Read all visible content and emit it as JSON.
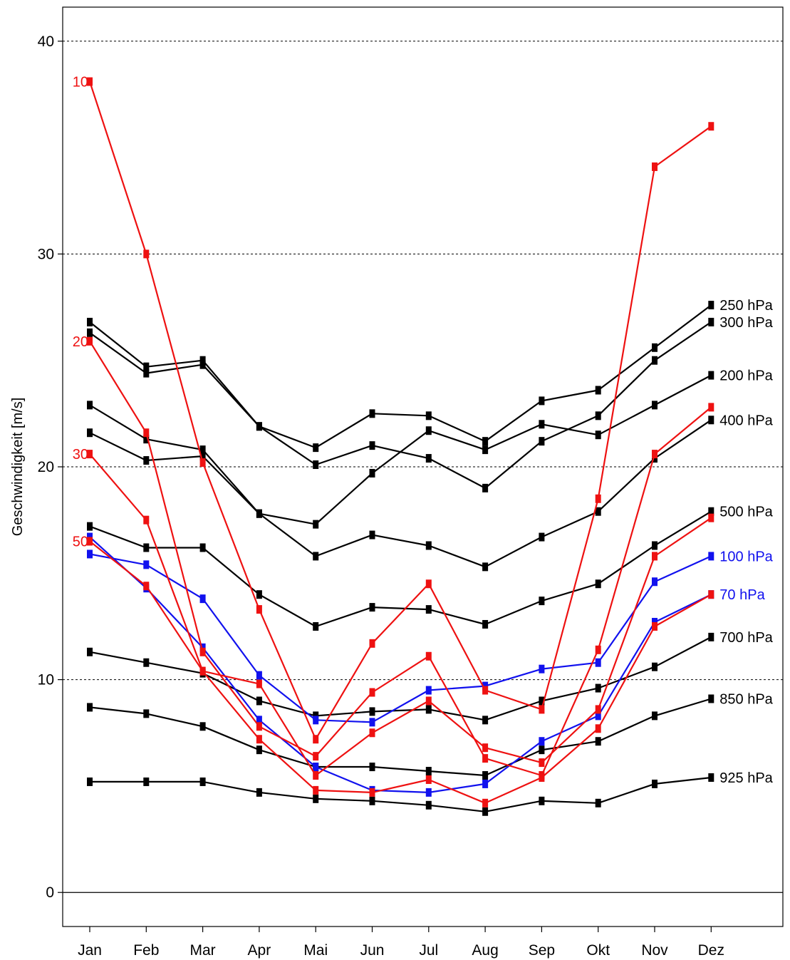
{
  "chart_data": {
    "type": "line",
    "title": "",
    "xlabel": "",
    "ylabel": "Geschwindigkeit [m/s]",
    "ylim": [
      -1.6,
      41.6
    ],
    "yticks": [
      0,
      10,
      20,
      30,
      40
    ],
    "grid": "horizontal-dotted",
    "categories": [
      "Jan",
      "Feb",
      "Mar",
      "Apr",
      "Mai",
      "Jun",
      "Jul",
      "Aug",
      "Sep",
      "Okt",
      "Nov",
      "Dez"
    ],
    "colors": {
      "black": "#000000",
      "red": "#ee1111",
      "blue": "#1111ee"
    },
    "series": [
      {
        "name": "250 hPa",
        "label_side": "right",
        "color": "red_no",
        "values": [
          26.8,
          24.7,
          25.0,
          21.9,
          20.9,
          22.5,
          22.4,
          21.2,
          23.1,
          23.6,
          25.6,
          27.6
        ]
      },
      {
        "name": "300 hPa",
        "label_side": "right",
        "color": "black",
        "values": [
          26.3,
          24.4,
          24.8,
          21.9,
          20.1,
          21.0,
          20.4,
          19.0,
          21.2,
          22.4,
          25.0,
          26.8
        ]
      },
      {
        "name": "200 hPa",
        "label_side": "right",
        "color": "black",
        "values": [
          22.9,
          21.3,
          20.8,
          17.8,
          17.3,
          19.7,
          21.7,
          20.8,
          22.0,
          21.5,
          22.9,
          24.3
        ]
      },
      {
        "name": "400 hPa",
        "label_side": "right",
        "color": "black",
        "values": [
          21.6,
          20.3,
          20.5,
          17.8,
          15.8,
          16.8,
          16.3,
          15.3,
          16.7,
          17.9,
          20.4,
          22.2
        ]
      },
      {
        "name": "500 hPa",
        "label_side": "right",
        "color": "black",
        "values": [
          17.2,
          16.2,
          16.2,
          14.0,
          12.5,
          13.4,
          13.3,
          12.6,
          13.7,
          14.5,
          16.3,
          17.9
        ]
      },
      {
        "name": "700 hPa",
        "label_side": "right",
        "color": "black",
        "values": [
          11.3,
          10.8,
          10.3,
          9.0,
          8.3,
          8.5,
          8.6,
          8.1,
          9.0,
          9.6,
          10.6,
          12.0
        ]
      },
      {
        "name": "850 hPa",
        "label_side": "right",
        "color": "black",
        "values": [
          8.7,
          8.4,
          7.8,
          6.7,
          5.9,
          5.9,
          5.7,
          5.5,
          6.7,
          7.1,
          8.3,
          9.1
        ]
      },
      {
        "name": "925 hPa",
        "label_side": "right",
        "color": "black",
        "values": [
          5.2,
          5.2,
          5.2,
          4.7,
          4.4,
          4.3,
          4.1,
          3.8,
          4.3,
          4.2,
          5.1,
          5.4
        ]
      },
      {
        "name": "100 hPa",
        "label_side": "right",
        "color": "blue",
        "values": [
          15.9,
          15.4,
          13.8,
          10.2,
          8.1,
          8.0,
          9.5,
          9.7,
          10.5,
          10.8,
          14.6,
          15.8
        ]
      },
      {
        "name": "70  hPa",
        "label_side": "right",
        "color": "blue",
        "values": [
          16.7,
          14.3,
          11.5,
          8.1,
          5.9,
          4.8,
          4.7,
          5.1,
          7.1,
          8.3,
          12.7,
          14.0
        ]
      },
      {
        "name": "10",
        "label_side": "left",
        "color": "red",
        "values": [
          38.1,
          30.0,
          20.2,
          13.3,
          7.2,
          11.7,
          14.5,
          9.5,
          8.6,
          18.5,
          34.1,
          36.0
        ]
      },
      {
        "name": "20",
        "label_side": "left",
        "color": "red",
        "values": [
          25.9,
          21.6,
          11.3,
          7.8,
          6.4,
          9.4,
          11.1,
          6.3,
          5.5,
          11.4,
          20.6,
          22.8
        ]
      },
      {
        "name": "30",
        "label_side": "left",
        "color": "red",
        "values": [
          20.6,
          17.5,
          10.4,
          9.8,
          5.5,
          7.5,
          9.0,
          6.8,
          6.1,
          8.6,
          15.8,
          17.6
        ]
      },
      {
        "name": "50",
        "label_side": "left",
        "color": "red",
        "values": [
          16.5,
          14.4,
          10.4,
          7.2,
          4.8,
          4.7,
          5.3,
          4.2,
          5.4,
          7.7,
          12.5,
          14.0
        ]
      }
    ]
  }
}
